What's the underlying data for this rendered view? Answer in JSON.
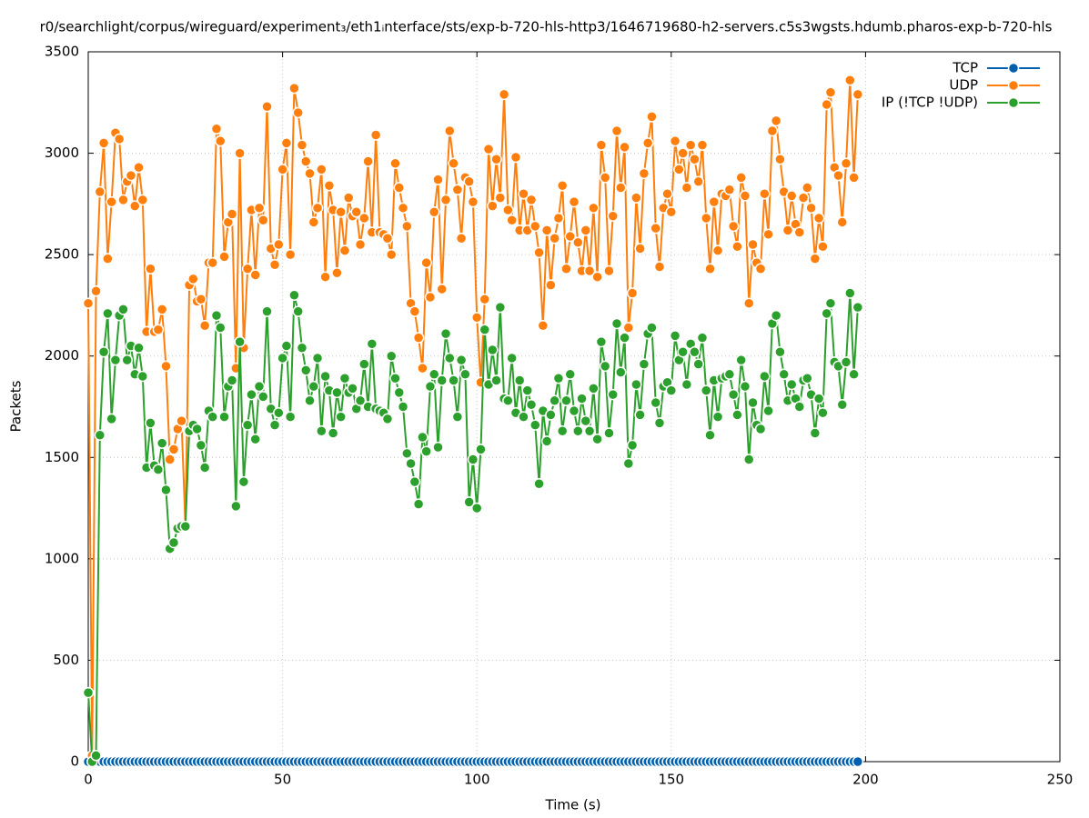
{
  "chart_data": {
    "type": "line",
    "title": "r0/searchlight/corpus/wireguard/experiment₃/eth1ᵢnterface/sts/exp-b-720-hls-http3/1646719680-h2-servers.c5s3wgsts.hdumb.pharos-exp-b-720-hls",
    "x_label": "Time (s)",
    "y_label": "Packets",
    "xlim": [
      0,
      250
    ],
    "xticks": [
      0,
      50,
      100,
      150,
      200,
      250
    ],
    "ylim": [
      0,
      3500
    ],
    "yticks": [
      0,
      500,
      1000,
      1500,
      2000,
      2500,
      3000,
      3500
    ],
    "grid": true,
    "legend": "top-right",
    "x": [
      0,
      1,
      2,
      3,
      4,
      5,
      6,
      7,
      8,
      9,
      10,
      11,
      12,
      13,
      14,
      15,
      16,
      17,
      18,
      19,
      20,
      21,
      22,
      23,
      24,
      25,
      26,
      27,
      28,
      29,
      30,
      31,
      32,
      33,
      34,
      35,
      36,
      37,
      38,
      39,
      40,
      41,
      42,
      43,
      44,
      45,
      46,
      47,
      48,
      49,
      50,
      51,
      52,
      53,
      54,
      55,
      56,
      57,
      58,
      59,
      60,
      61,
      62,
      63,
      64,
      65,
      66,
      67,
      68,
      69,
      70,
      71,
      72,
      73,
      74,
      75,
      76,
      77,
      78,
      79,
      80,
      81,
      82,
      83,
      84,
      85,
      86,
      87,
      88,
      89,
      90,
      91,
      92,
      93,
      94,
      95,
      96,
      97,
      98,
      99,
      100,
      101,
      102,
      103,
      104,
      105,
      106,
      107,
      108,
      109,
      110,
      111,
      112,
      113,
      114,
      115,
      116,
      117,
      118,
      119,
      120,
      121,
      122,
      123,
      124,
      125,
      126,
      127,
      128,
      129,
      130,
      131,
      132,
      133,
      134,
      135,
      136,
      137,
      138,
      139,
      140,
      141,
      142,
      143,
      144,
      145,
      146,
      147,
      148,
      149,
      150,
      151,
      152,
      153,
      154,
      155,
      156,
      157,
      158,
      159,
      160,
      161,
      162,
      163,
      164,
      165,
      166,
      167,
      168,
      169,
      170,
      171,
      172,
      173,
      174,
      175,
      176,
      177,
      178,
      179,
      180,
      181,
      182,
      183,
      184,
      185,
      186,
      187,
      188,
      189,
      190,
      191,
      192,
      193,
      194,
      195,
      196,
      197,
      198
    ],
    "series": [
      {
        "name": "TCP",
        "color": "#0060ad",
        "values": [
          0,
          0,
          0,
          0,
          0,
          0,
          0,
          0,
          0,
          0,
          0,
          0,
          0,
          0,
          0,
          0,
          0,
          0,
          0,
          0,
          0,
          0,
          0,
          0,
          0,
          0,
          0,
          0,
          0,
          0,
          0,
          0,
          0,
          0,
          0,
          0,
          0,
          0,
          0,
          0,
          0,
          0,
          0,
          0,
          0,
          0,
          0,
          0,
          0,
          0,
          0,
          0,
          0,
          0,
          0,
          0,
          0,
          0,
          0,
          0,
          0,
          0,
          0,
          0,
          0,
          0,
          0,
          0,
          0,
          0,
          0,
          0,
          0,
          0,
          0,
          0,
          0,
          0,
          0,
          0,
          0,
          0,
          0,
          0,
          0,
          0,
          0,
          0,
          0,
          0,
          0,
          0,
          0,
          0,
          0,
          0,
          0,
          0,
          0,
          0,
          0,
          0,
          0,
          0,
          0,
          0,
          0,
          0,
          0,
          0,
          0,
          0,
          0,
          0,
          0,
          0,
          0,
          0,
          0,
          0,
          0,
          0,
          0,
          0,
          0,
          0,
          0,
          0,
          0,
          0,
          0,
          0,
          0,
          0,
          0,
          0,
          0,
          0,
          0,
          0,
          0,
          0,
          0,
          0,
          0,
          0,
          0,
          0,
          0,
          0,
          0,
          0,
          0,
          0,
          0,
          0,
          0,
          0,
          0,
          0,
          0,
          0,
          0,
          0,
          0,
          0,
          0,
          0,
          0,
          0,
          0,
          0,
          0,
          0,
          0,
          0,
          0,
          0,
          0,
          0,
          0,
          0,
          0,
          0,
          0,
          0,
          0,
          0,
          0,
          0,
          0,
          0,
          0,
          0,
          0,
          0,
          0,
          0,
          0
        ]
      },
      {
        "name": "UDP",
        "color": "#ff7f0e",
        "values": [
          2260,
          30,
          2320,
          2810,
          3050,
          2480,
          2760,
          3100,
          3070,
          2770,
          2860,
          2890,
          2740,
          2930,
          2770,
          2120,
          2430,
          2120,
          2130,
          2230,
          1950,
          1490,
          1540,
          1640,
          1680,
          1160,
          2350,
          2380,
          2270,
          2280,
          2150,
          2460,
          2460,
          3120,
          3060,
          2490,
          2660,
          2700,
          1940,
          3000,
          2040,
          2430,
          2720,
          2400,
          2730,
          2670,
          3230,
          2530,
          2450,
          2550,
          2920,
          3050,
          2500,
          3320,
          3200,
          3040,
          2960,
          2900,
          2660,
          2730,
          2920,
          2390,
          2840,
          2720,
          2410,
          2710,
          2520,
          2780,
          2690,
          2710,
          2550,
          2680,
          2960,
          2610,
          3090,
          2610,
          2600,
          2580,
          2500,
          2950,
          2830,
          2730,
          2640,
          2260,
          2220,
          2090,
          1940,
          2460,
          2290,
          2710,
          2870,
          2330,
          2770,
          3110,
          2950,
          2820,
          2580,
          2880,
          2860,
          2760,
          2190,
          1870,
          2280,
          3020,
          2740,
          2970,
          2780,
          3290,
          2720,
          2670,
          2980,
          2620,
          2800,
          2620,
          2770,
          2640,
          2510,
          2150,
          2620,
          2350,
          2580,
          2680,
          2840,
          2430,
          2590,
          2760,
          2560,
          2420,
          2620,
          2420,
          2730,
          2390,
          3040,
          2880,
          2420,
          2690,
          3110,
          2830,
          3030,
          2140,
          2310,
          2780,
          2530,
          2900,
          3050,
          3180,
          2630,
          2440,
          2730,
          2800,
          2710,
          3060,
          2920,
          3000,
          2830,
          3040,
          2970,
          2860,
          3040,
          2680,
          2430,
          2760,
          2520,
          2800,
          2790,
          2820,
          2640,
          2540,
          2880,
          2790,
          2260,
          2550,
          2460,
          2430,
          2800,
          2600,
          3110,
          3160,
          2970,
          2810,
          2620,
          2790,
          2650,
          2610,
          2780,
          2830,
          2730,
          2480,
          2680,
          2540,
          3240,
          3300,
          2930,
          2890,
          2660,
          2950,
          3360,
          2880,
          3290
        ]
      },
      {
        "name": "IP (!TCP  !UDP)",
        "color": "#2ca02c",
        "values": [
          340,
          0,
          30,
          1610,
          2020,
          2210,
          1690,
          1980,
          2200,
          2230,
          1980,
          2050,
          1910,
          2040,
          1900,
          1450,
          1670,
          1460,
          1440,
          1570,
          1340,
          1050,
          1080,
          1150,
          1160,
          1160,
          1630,
          1660,
          1640,
          1560,
          1450,
          1730,
          1700,
          2200,
          2140,
          1700,
          1850,
          1880,
          1260,
          2070,
          1380,
          1660,
          1810,
          1590,
          1850,
          1800,
          2220,
          1740,
          1660,
          1720,
          1990,
          2050,
          1700,
          2300,
          2220,
          2040,
          1930,
          1780,
          1850,
          1990,
          1630,
          1900,
          1830,
          1620,
          1820,
          1700,
          1890,
          1820,
          1840,
          1740,
          1780,
          1960,
          1750,
          2060,
          1740,
          1730,
          1720,
          1690,
          2000,
          1890,
          1820,
          1750,
          1520,
          1470,
          1380,
          1270,
          1600,
          1530,
          1850,
          1910,
          1550,
          1880,
          2110,
          1990,
          1880,
          1700,
          1980,
          1910,
          1280,
          1490,
          1250,
          1540,
          2130,
          1860,
          2030,
          1880,
          2240,
          1790,
          1780,
          1990,
          1720,
          1880,
          1700,
          1830,
          1760,
          1660,
          1370,
          1730,
          1580,
          1710,
          1780,
          1890,
          1630,
          1780,
          1910,
          1730,
          1630,
          1790,
          1680,
          1630,
          1840,
          1590,
          2070,
          1950,
          1620,
          1810,
          2160,
          1920,
          2090,
          1470,
          1560,
          1860,
          1710,
          1960,
          2110,
          2140,
          1770,
          1670,
          1850,
          1870,
          1830,
          2100,
          1980,
          2020,
          1860,
          2060,
          2020,
          1960,
          2090,
          1830,
          1610,
          1880,
          1700,
          1890,
          1900,
          1910,
          1810,
          1710,
          1980,
          1850,
          1490,
          1770,
          1660,
          1640,
          1900,
          1730,
          2160,
          2200,
          2020,
          1910,
          1780,
          1860,
          1790,
          1750,
          1880,
          1890,
          1810,
          1620,
          1790,
          1720,
          2210,
          2260,
          1970,
          1950,
          1760,
          1970,
          2310,
          1910,
          2240
        ]
      }
    ]
  }
}
